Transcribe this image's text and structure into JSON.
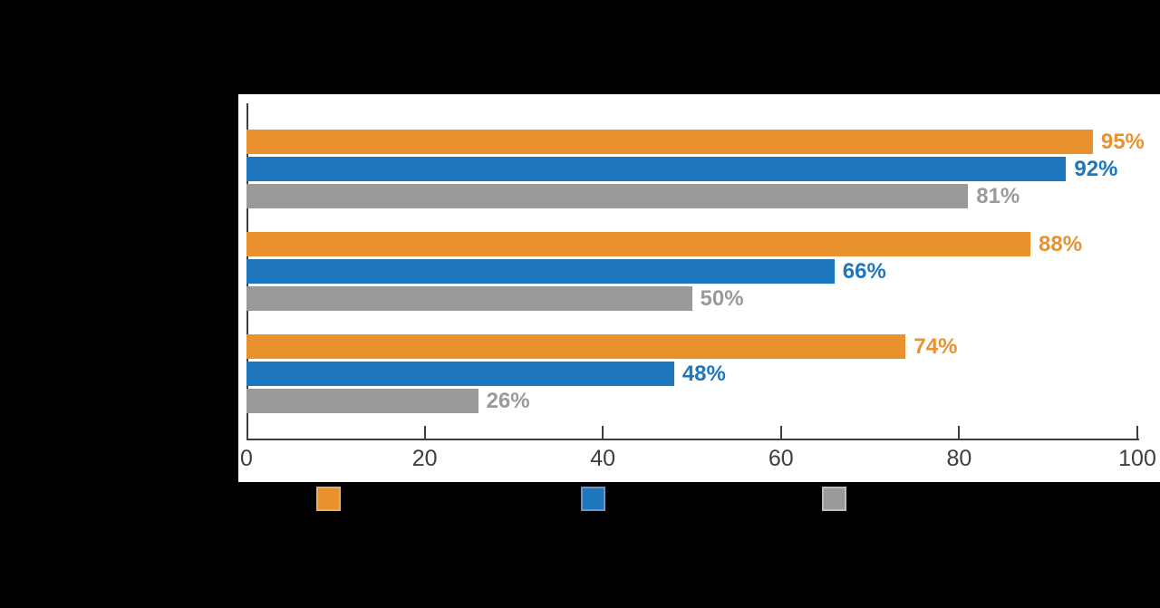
{
  "colors": {
    "background": "#000000",
    "panel": "#ffffff",
    "axis": "#3f3f3f",
    "tick_label": "#3e3e3e",
    "orange": "#e8912d",
    "blue": "#1e76bc",
    "gray": "#9a9a9a"
  },
  "chart_data": {
    "type": "bar",
    "orientation": "horizontal",
    "title": "",
    "xlabel": "",
    "ylabel": "",
    "xlim": [
      0,
      100
    ],
    "grid": false,
    "groups": 3,
    "series": [
      {
        "name": "series-orange",
        "color": "#e8912d",
        "values": [
          95,
          88,
          74
        ],
        "labels": [
          "95%",
          "88%",
          "74%"
        ]
      },
      {
        "name": "series-blue",
        "color": "#1e76bc",
        "values": [
          92,
          66,
          48
        ],
        "labels": [
          "92%",
          "66%",
          "48%"
        ]
      },
      {
        "name": "series-gray",
        "color": "#9a9a9a",
        "values": [
          81,
          50,
          26
        ],
        "labels": [
          "81%",
          "50%",
          "26%"
        ]
      }
    ],
    "x_ticks": [
      {
        "value": 0,
        "label": "0"
      },
      {
        "value": 20,
        "label": "20"
      },
      {
        "value": 40,
        "label": "40"
      },
      {
        "value": 60,
        "label": "60"
      },
      {
        "value": 80,
        "label": "80"
      },
      {
        "value": 100,
        "label": "100"
      }
    ],
    "legend_position": "bottom"
  },
  "legend": {
    "swatches": [
      {
        "name": "legend-swatch-orange",
        "color": "#e8912d",
        "border": "#f2ab55"
      },
      {
        "name": "legend-swatch-blue",
        "color": "#1e76bc",
        "border": "#5d9bd3"
      },
      {
        "name": "legend-swatch-gray",
        "color": "#9a9a9a",
        "border": "#bdbdbd"
      }
    ]
  }
}
